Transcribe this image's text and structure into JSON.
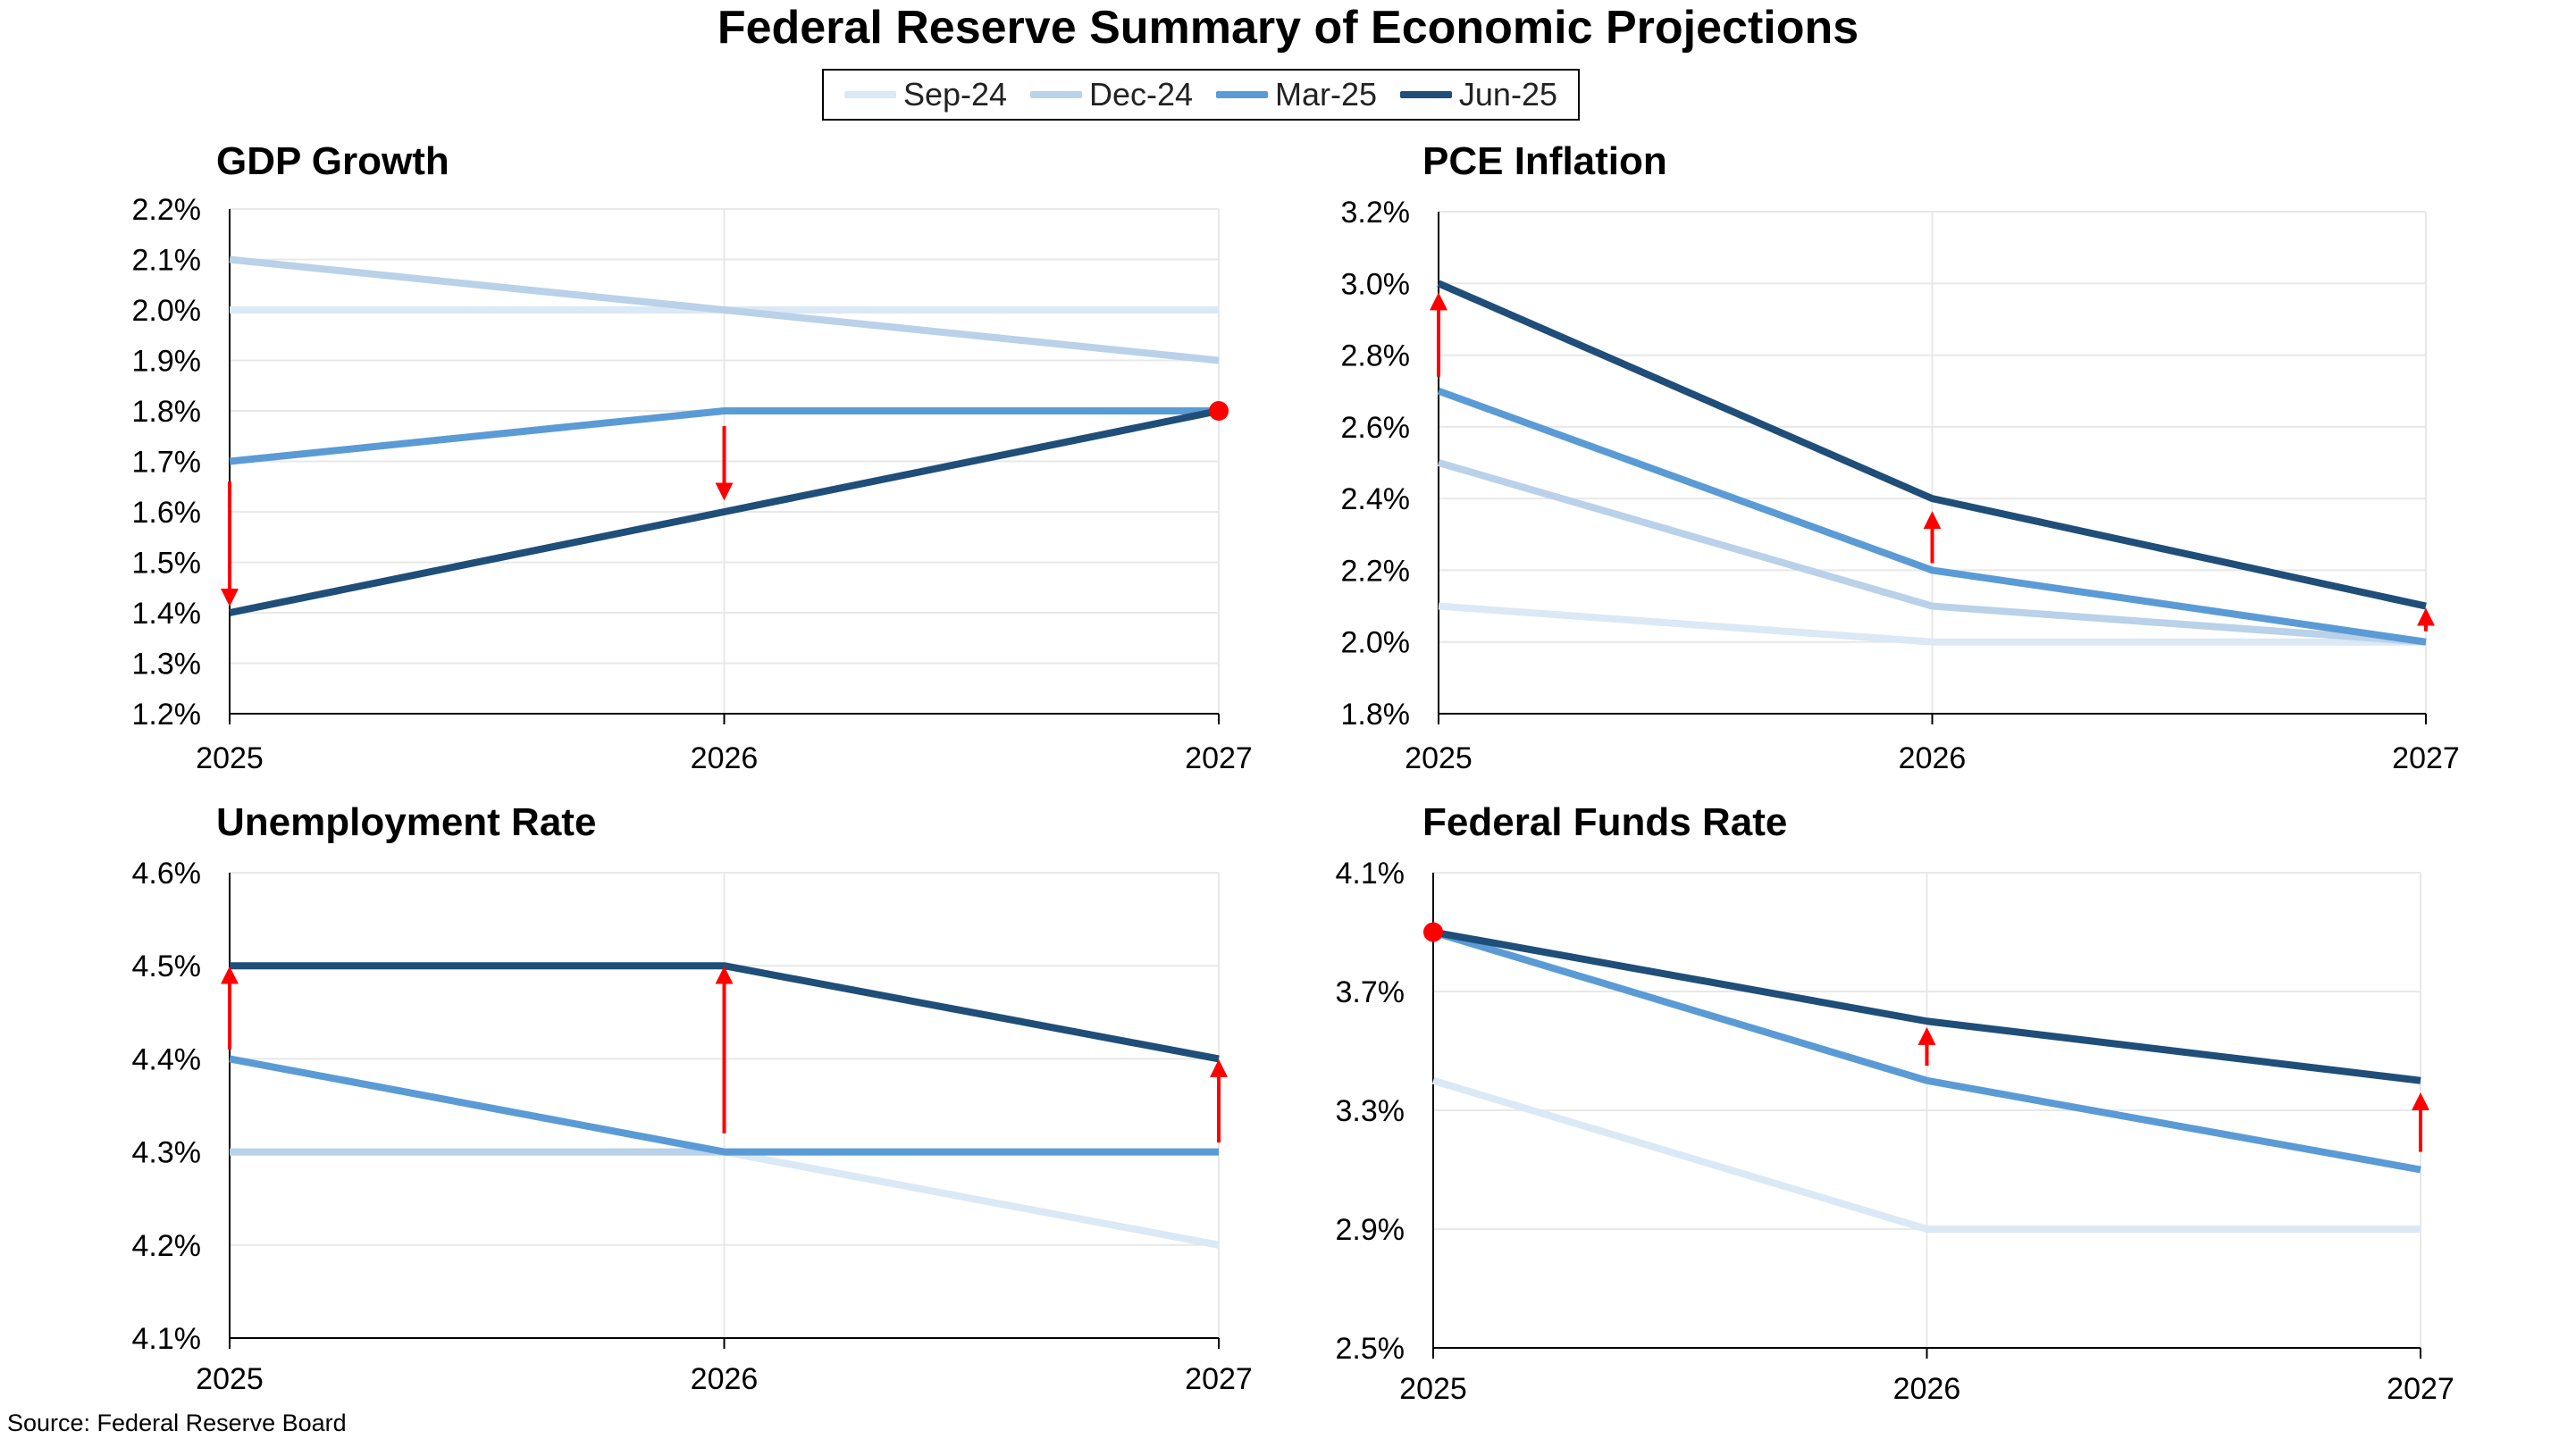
{
  "title": "Federal Reserve Summary of Economic Projections",
  "source": "Source: Federal Reserve Board",
  "legend": [
    {
      "name": "Sep-24",
      "color": "#dbe8f5"
    },
    {
      "name": "Dec-24",
      "color": "#b9d1e9"
    },
    {
      "name": "Mar-25",
      "color": "#5b9bd5"
    },
    {
      "name": "Jun-25",
      "color": "#1f4e79"
    }
  ],
  "colors": {
    "Sep-24": "#dbe8f5",
    "Dec-24": "#b9d1e9",
    "Mar-25": "#5b9bd5",
    "Jun-25": "#1f4e79",
    "arrow": "#ff0000",
    "grid": "#e8e8e8",
    "axis": "#000000"
  },
  "chart_data": [
    {
      "type": "line",
      "title": "GDP Growth",
      "x": [
        "2025",
        "2026",
        "2027"
      ],
      "ylim": [
        1.2,
        2.2
      ],
      "yticks": [
        1.2,
        1.3,
        1.4,
        1.5,
        1.6,
        1.7,
        1.8,
        1.9,
        2.0,
        2.1,
        2.2
      ],
      "y_format": "%",
      "y_decimals": 1,
      "series": [
        {
          "name": "Sep-24",
          "values": [
            2.0,
            2.0,
            2.0
          ]
        },
        {
          "name": "Dec-24",
          "values": [
            2.1,
            2.0,
            1.9
          ]
        },
        {
          "name": "Mar-25",
          "values": [
            1.7,
            1.8,
            1.8
          ]
        },
        {
          "name": "Jun-25",
          "values": [
            1.4,
            1.6,
            1.8
          ]
        }
      ],
      "arrows": [
        {
          "x": "2025",
          "from": 1.66,
          "to": 1.43
        },
        {
          "x": "2026",
          "from": 1.77,
          "to": 1.64
        }
      ],
      "dots": [
        {
          "x": "2027",
          "y": 1.8
        }
      ]
    },
    {
      "type": "line",
      "title": "PCE Inflation",
      "x": [
        "2025",
        "2026",
        "2027"
      ],
      "ylim": [
        1.8,
        3.2
      ],
      "yticks": [
        1.8,
        2.0,
        2.2,
        2.4,
        2.6,
        2.8,
        3.0,
        3.2
      ],
      "y_format": "%",
      "y_decimals": 1,
      "series": [
        {
          "name": "Sep-24",
          "values": [
            2.1,
            2.0,
            2.0
          ]
        },
        {
          "name": "Dec-24",
          "values": [
            2.5,
            2.1,
            2.0
          ]
        },
        {
          "name": "Mar-25",
          "values": [
            2.7,
            2.2,
            2.0
          ]
        },
        {
          "name": "Jun-25",
          "values": [
            3.0,
            2.4,
            2.1
          ]
        }
      ],
      "arrows": [
        {
          "x": "2025",
          "from": 2.74,
          "to": 2.95
        },
        {
          "x": "2026",
          "from": 2.22,
          "to": 2.34
        },
        {
          "x": "2027",
          "from": 2.03,
          "to": 2.07
        }
      ],
      "dots": []
    },
    {
      "type": "line",
      "title": "Unemployment Rate",
      "x": [
        "2025",
        "2026",
        "2027"
      ],
      "ylim": [
        4.1,
        4.6
      ],
      "yticks": [
        4.1,
        4.2,
        4.3,
        4.4,
        4.5,
        4.6
      ],
      "y_format": "%",
      "y_decimals": 1,
      "series": [
        {
          "name": "Sep-24",
          "values": [
            4.3,
            4.3,
            4.2
          ]
        },
        {
          "name": "Dec-24",
          "values": [
            4.3,
            4.3,
            4.3
          ]
        },
        {
          "name": "Mar-25",
          "values": [
            4.4,
            4.3,
            4.3
          ]
        },
        {
          "name": "Jun-25",
          "values": [
            4.5,
            4.5,
            4.4
          ]
        }
      ],
      "arrows": [
        {
          "x": "2025",
          "from": 4.41,
          "to": 4.49
        },
        {
          "x": "2026",
          "from": 4.32,
          "to": 4.49
        },
        {
          "x": "2027",
          "from": 4.31,
          "to": 4.39
        }
      ],
      "dots": []
    },
    {
      "type": "line",
      "title": "Federal Funds Rate",
      "x": [
        "2025",
        "2026",
        "2027"
      ],
      "ylim": [
        2.5,
        4.1
      ],
      "yticks": [
        2.5,
        2.9,
        3.3,
        3.7,
        4.1
      ],
      "y_format": "%",
      "y_decimals": 1,
      "series": [
        {
          "name": "Sep-24",
          "values": [
            3.4,
            2.9,
            2.9
          ]
        },
        {
          "name": "Mar-25",
          "values": [
            3.9,
            3.4,
            3.1
          ]
        },
        {
          "name": "Jun-25",
          "values": [
            3.9,
            3.6,
            3.4
          ]
        }
      ],
      "arrows": [
        {
          "x": "2026",
          "from": 3.45,
          "to": 3.55
        },
        {
          "x": "2027",
          "from": 3.16,
          "to": 3.33
        }
      ],
      "dots": [
        {
          "x": "2025",
          "y": 3.9
        }
      ]
    }
  ]
}
